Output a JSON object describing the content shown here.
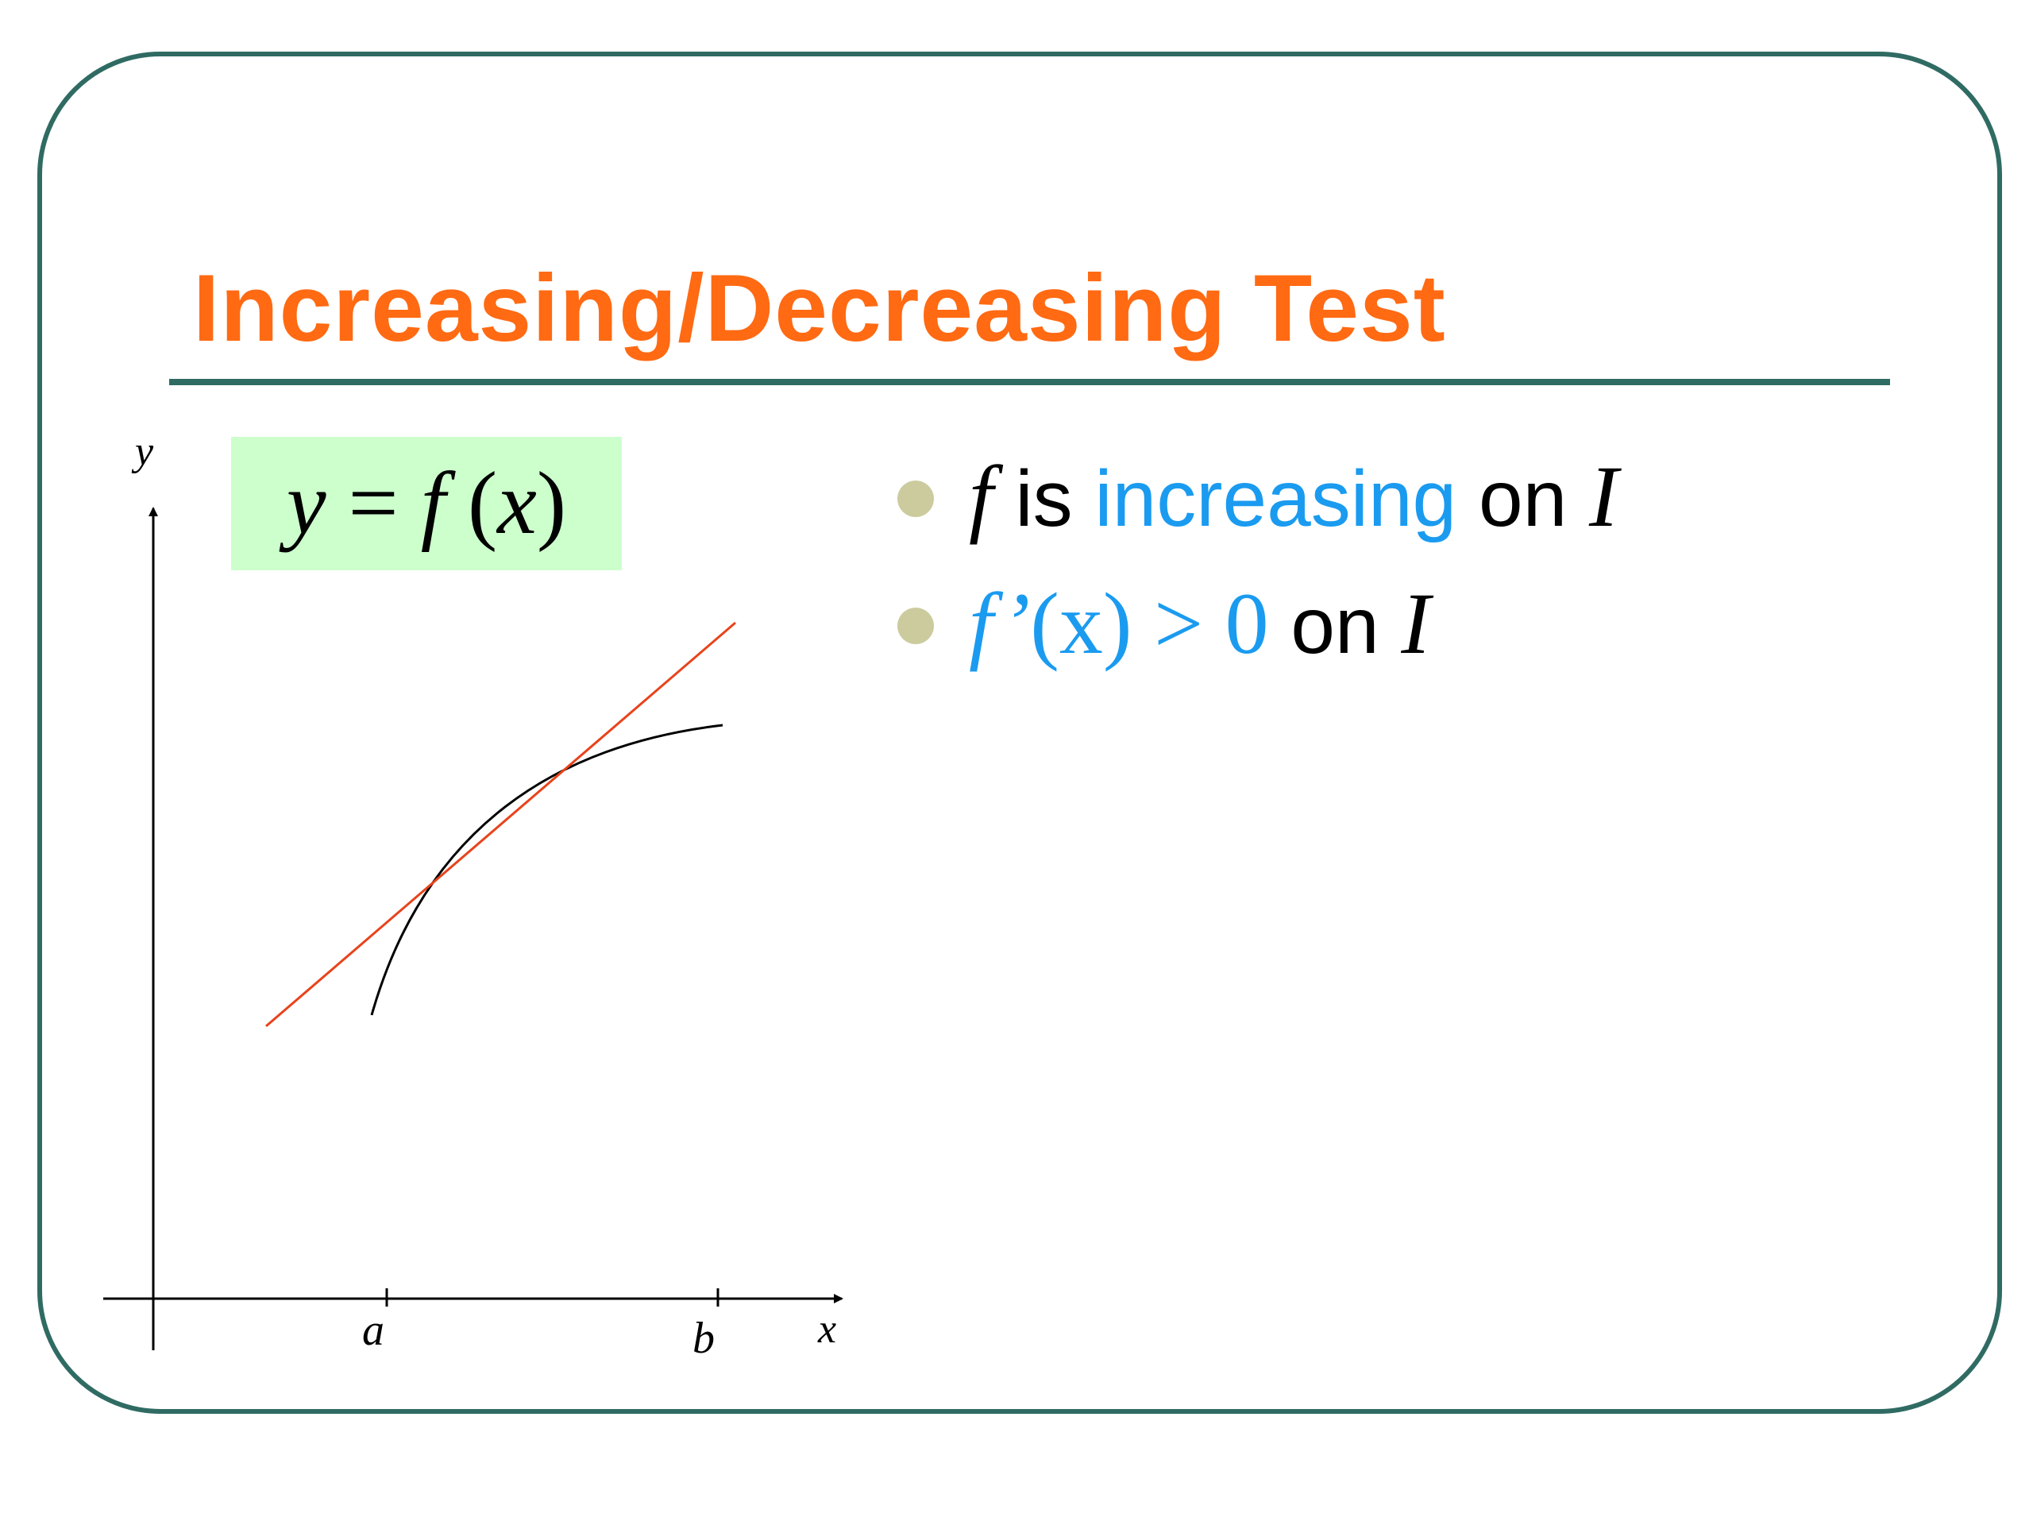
{
  "slide": {
    "title": "Increasing/Decreasing Test"
  },
  "formula": {
    "y": "y",
    "equals": " = ",
    "f": "f",
    "open": " (",
    "x": "x",
    "close": ")"
  },
  "graph": {
    "y_axis_label": "y",
    "x_axis_label": "x",
    "tick_a": "a",
    "tick_b": "b"
  },
  "bullets": [
    {
      "f": "f",
      "is": " is ",
      "increasing": "increasing",
      "on": " on ",
      "interval": "I"
    },
    {
      "fprime": "f’",
      "arg": "(x)",
      "gt": " > 0",
      "on": " on ",
      "interval": "I"
    }
  ],
  "colors": {
    "title": "#ff6a13",
    "frame": "#2f6b63",
    "highlight_blue": "#1a9bf0",
    "formula_bg": "#ccffcc",
    "tangent_line": "#e8431b",
    "bullet_dot": "#cbcb9e"
  }
}
